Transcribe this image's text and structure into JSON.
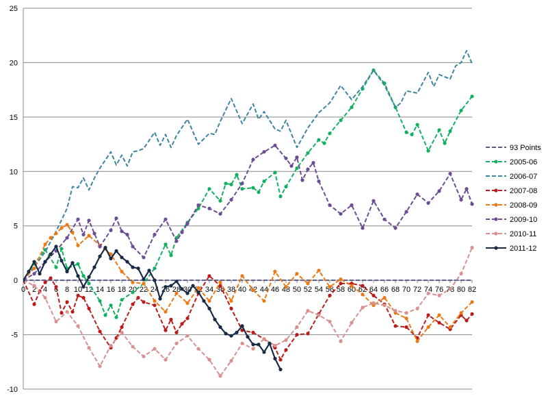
{
  "chart_data": {
    "type": "line",
    "title": "",
    "xlabel": "",
    "ylabel": "",
    "xlim": [
      0,
      82
    ],
    "ylim": [
      -10,
      25
    ],
    "xtick_step": 2,
    "ytick_step": 5,
    "y_tick_labels": [
      "-10",
      "-5",
      "0",
      "5",
      "10",
      "15",
      "20",
      "25"
    ],
    "x_tick_labels": [
      "0",
      "2",
      "4",
      "6",
      "8",
      "10",
      "12",
      "14",
      "16",
      "18",
      "20",
      "22",
      "24",
      "26",
      "28",
      "30",
      "32",
      "34",
      "36",
      "38",
      "40",
      "42",
      "44",
      "46",
      "48",
      "50",
      "52",
      "54",
      "56",
      "58",
      "60",
      "62",
      "64",
      "66",
      "68",
      "70",
      "72",
      "74",
      "76",
      "78",
      "80",
      "82"
    ],
    "grid": "horizontal",
    "legend_position": "right",
    "series": [
      {
        "name": "93 Points",
        "color": "#5a5a82",
        "dash": true,
        "marker": false,
        "x": [
          0,
          82
        ],
        "y": [
          0,
          0
        ]
      },
      {
        "name": "2005-06",
        "color": "#12b060",
        "dash": true,
        "marker": true,
        "x": [
          0,
          2,
          4,
          6,
          7,
          8,
          10,
          11,
          12,
          14,
          15,
          16,
          17,
          18,
          20,
          22,
          24,
          26,
          27,
          28,
          30,
          32,
          34,
          36,
          37,
          38,
          39,
          40,
          42,
          43,
          44,
          46,
          47,
          48,
          50,
          52,
          54,
          55,
          56,
          58,
          60,
          62,
          64,
          66,
          68,
          70,
          71,
          72,
          74,
          76,
          77,
          78,
          80,
          82
        ],
        "y": [
          0,
          1.5,
          2.8,
          1.2,
          2.9,
          1.1,
          1.5,
          0.4,
          -0.3,
          -1.9,
          -3.2,
          -2.3,
          -3.4,
          -1.8,
          -1.1,
          -0.3,
          1.1,
          3.3,
          2.3,
          3.9,
          5.3,
          6.6,
          8.4,
          7.3,
          8.9,
          8.8,
          9.7,
          8.4,
          8.5,
          8.1,
          9.1,
          9.9,
          7.7,
          8.6,
          10.3,
          11.7,
          12.9,
          12.6,
          13.5,
          14.7,
          15.9,
          17.6,
          19.3,
          18.1,
          15.9,
          13.6,
          13.4,
          14.3,
          11.9,
          13.8,
          12.6,
          13.7,
          15.6,
          16.9
        ]
      },
      {
        "name": "2006-07",
        "color": "#3d849e",
        "dash": true,
        "marker": false,
        "x": [
          0,
          2,
          4,
          6,
          8,
          9,
          10,
          11,
          12,
          13,
          14,
          16,
          17,
          18,
          19,
          20,
          21,
          22,
          24,
          25,
          26,
          27,
          28,
          30,
          32,
          34,
          35,
          36,
          38,
          40,
          42,
          43,
          44,
          46,
          47,
          48,
          50,
          52,
          54,
          56,
          58,
          60,
          62,
          64,
          66,
          68,
          69,
          70,
          72,
          74,
          75,
          76,
          78,
          79,
          80,
          81,
          82
        ],
        "y": [
          0,
          1.2,
          2.6,
          4.5,
          6.6,
          8.6,
          8.5,
          9.4,
          8.3,
          9.4,
          10.3,
          11.8,
          10.6,
          11.5,
          10.5,
          11.8,
          11.9,
          12.1,
          13.6,
          12.4,
          13.4,
          12.2,
          13.3,
          14.8,
          12.5,
          13.5,
          13.4,
          14.6,
          16.7,
          14.4,
          16.2,
          14.8,
          15.5,
          13.9,
          13.7,
          14.7,
          12.2,
          14.0,
          15.4,
          16.3,
          17.9,
          16.6,
          17.8,
          19.3,
          17.9,
          15.9,
          16.3,
          17.4,
          17.2,
          19.1,
          17.8,
          18.9,
          18.5,
          19.7,
          20.0,
          21.1,
          19.9
        ]
      },
      {
        "name": "2007-08",
        "color": "#b81c1c",
        "dash": true,
        "marker": true,
        "x": [
          0,
          2,
          3,
          4,
          5,
          6,
          7,
          8,
          9,
          10,
          11,
          12,
          14,
          16,
          17,
          18,
          20,
          21,
          22,
          24,
          26,
          27,
          28,
          29,
          30,
          32,
          34,
          36,
          38,
          40,
          42,
          44,
          46,
          47,
          48,
          50,
          52,
          54,
          56,
          58,
          60,
          62,
          64,
          66,
          68,
          70,
          72,
          74,
          76,
          78,
          80,
          81,
          82
        ],
        "y": [
          0,
          -2.2,
          -1.0,
          -0.2,
          0.2,
          -0.6,
          -3.0,
          -2.0,
          -2.9,
          -1.4,
          -1.6,
          -2.6,
          -4.7,
          -6.2,
          -5.3,
          -4.3,
          -2.2,
          -1.6,
          -2.0,
          -2.3,
          -4.6,
          -3.6,
          -4.8,
          -4.0,
          -3.5,
          -1.2,
          0.4,
          -0.5,
          -2.6,
          -4.6,
          -4.8,
          -5.4,
          -6.2,
          -7.3,
          -6.4,
          -5.0,
          -4.9,
          -3.1,
          -1.4,
          -0.3,
          -0.3,
          -0.5,
          -1.4,
          -2.2,
          -4.2,
          -4.3,
          -5.3,
          -3.2,
          -3.9,
          -4.5,
          -3.2,
          -3.7,
          -3.1
        ]
      },
      {
        "name": "2008-09",
        "color": "#ea7a16",
        "dash": true,
        "marker": true,
        "x": [
          0,
          2,
          4,
          5,
          6,
          7,
          8,
          9,
          10,
          12,
          14,
          16,
          18,
          20,
          22,
          24,
          26,
          28,
          30,
          32,
          34,
          36,
          38,
          40,
          42,
          44,
          46,
          48,
          50,
          52,
          54,
          56,
          58,
          60,
          62,
          64,
          66,
          68,
          70,
          72,
          74,
          76,
          78,
          80,
          82
        ],
        "y": [
          0,
          1.1,
          3.3,
          3.9,
          4.3,
          4.8,
          5.1,
          4.4,
          3.2,
          4.1,
          3.2,
          2.4,
          0.8,
          -0.2,
          -0.3,
          -1.9,
          -2.9,
          -1.2,
          -2.1,
          -0.7,
          -1.9,
          -0.2,
          -1.9,
          0.4,
          -0.9,
          -1.9,
          0.8,
          -0.6,
          0.6,
          -0.3,
          0.9,
          -0.6,
          0.1,
          -0.5,
          -1.3,
          -2.3,
          -1.6,
          -3.0,
          -3.5,
          -5.6,
          -4.3,
          -3.2,
          -4.3,
          -3.0,
          -2.0
        ]
      },
      {
        "name": "2009-10",
        "color": "#6c4c92",
        "dash": true,
        "marker": true,
        "x": [
          0,
          2,
          4,
          6,
          8,
          10,
          11,
          12,
          13,
          14,
          16,
          17,
          18,
          19,
          20,
          22,
          24,
          26,
          28,
          29,
          30,
          32,
          34,
          36,
          38,
          40,
          42,
          44,
          46,
          48,
          49,
          50,
          51,
          52,
          53,
          54,
          56,
          58,
          60,
          62,
          64,
          66,
          68,
          70,
          72,
          74,
          76,
          78,
          80,
          81,
          82
        ],
        "y": [
          0,
          0.6,
          1.7,
          2.7,
          3.9,
          5.6,
          4.2,
          5.5,
          4.3,
          3.1,
          4.6,
          5.7,
          4.5,
          4.2,
          3.1,
          2.1,
          4.2,
          5.6,
          3.6,
          4.4,
          5.2,
          6.9,
          6.6,
          6.1,
          7.4,
          8.9,
          11.1,
          11.8,
          12.4,
          11.2,
          10.5,
          11.3,
          9.2,
          10.2,
          10.8,
          9.1,
          6.9,
          6.1,
          6.9,
          4.8,
          7.3,
          5.6,
          4.8,
          6.3,
          7.9,
          7.1,
          8.2,
          9.8,
          7.4,
          8.4,
          7.0
        ]
      },
      {
        "name": "2010-11",
        "color": "#d89090",
        "dash": true,
        "marker": true,
        "x": [
          0,
          2,
          4,
          6,
          8,
          10,
          12,
          14,
          16,
          18,
          20,
          22,
          24,
          26,
          28,
          30,
          32,
          34,
          36,
          38,
          40,
          42,
          44,
          46,
          48,
          50,
          52,
          54,
          56,
          58,
          60,
          62,
          64,
          66,
          68,
          70,
          72,
          74,
          76,
          78,
          80,
          82
        ],
        "y": [
          0,
          -0.5,
          -1.6,
          -3.8,
          -2.9,
          -4.2,
          -6.2,
          -7.9,
          -6.0,
          -4.8,
          -6.1,
          -7.0,
          -6.3,
          -7.3,
          -5.8,
          -5.1,
          -6.3,
          -7.3,
          -8.8,
          -7.4,
          -5.8,
          -6.3,
          -5.4,
          -6.0,
          -5.5,
          -4.3,
          -2.8,
          -3.2,
          -3.8,
          -5.6,
          -3.9,
          -2.5,
          -2.1,
          -2.3,
          -2.8,
          -3.0,
          -2.6,
          -1.2,
          -1.4,
          -0.8,
          0.6,
          3.0
        ]
      },
      {
        "name": "2011-12",
        "color": "#172a46",
        "dash": false,
        "marker": true,
        "x": [
          0,
          1,
          2,
          3,
          4,
          5,
          6,
          7,
          8,
          9,
          10,
          11,
          12,
          13,
          14,
          15,
          16,
          17,
          18,
          19,
          20,
          21,
          22,
          23,
          24,
          25,
          26,
          27,
          28,
          29,
          30,
          31,
          32,
          33,
          34,
          35,
          36,
          37,
          38,
          39,
          40,
          41,
          42,
          43,
          44,
          45,
          46,
          47
        ],
        "y": [
          0,
          0.8,
          1.7,
          0.6,
          1.7,
          2.4,
          3.1,
          1.8,
          0.8,
          1.6,
          0.4,
          -0.6,
          0.3,
          1.2,
          2.2,
          3.0,
          2.0,
          2.7,
          2.1,
          1.7,
          1.2,
          1.1,
          0.1,
          0.9,
          0.0,
          -1.7,
          -0.6,
          -0.5,
          -0.1,
          -0.8,
          -1.2,
          -0.5,
          -1.1,
          -1.9,
          -2.6,
          -3.6,
          -4.3,
          -4.9,
          -5.1,
          -4.8,
          -4.2,
          -5.2,
          -5.9,
          -5.9,
          -6.6,
          -5.8,
          -7.2,
          -8.2
        ]
      }
    ]
  }
}
